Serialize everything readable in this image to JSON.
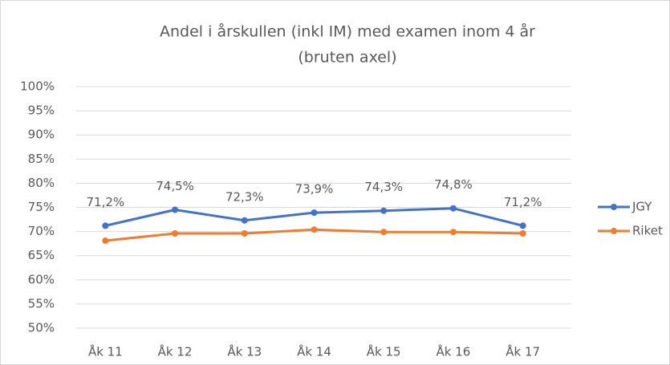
{
  "chart_data": {
    "type": "line",
    "title": [
      "Andel i årskullen (inkl IM) med examen inom 4 år",
      "(bruten axel)"
    ],
    "categories": [
      "Åk 11",
      "Åk 12",
      "Åk 13",
      "Åk 14",
      "Åk 15",
      "Åk 16",
      "Åk 17"
    ],
    "series": [
      {
        "name": "JGY",
        "color": "#4472c4",
        "values": [
          71.2,
          74.5,
          72.3,
          73.9,
          74.3,
          74.8,
          71.2
        ],
        "value_labels": [
          "71,2%",
          "74,5%",
          "72,3%",
          "73,9%",
          "74,3%",
          "74,8%",
          "71,2%"
        ]
      },
      {
        "name": "Riket",
        "color": "#ed7d31",
        "values": [
          68.1,
          69.6,
          69.6,
          70.4,
          69.9,
          69.9,
          69.6
        ]
      }
    ],
    "ylim": [
      50,
      100
    ],
    "yticks": [
      {
        "value": 50,
        "label": "50%"
      },
      {
        "value": 55,
        "label": "55%"
      },
      {
        "value": 60,
        "label": "60%"
      },
      {
        "value": 65,
        "label": "65%"
      },
      {
        "value": 70,
        "label": "70%"
      },
      {
        "value": 75,
        "label": "75%"
      },
      {
        "value": 80,
        "label": "80%"
      },
      {
        "value": 85,
        "label": "85%"
      },
      {
        "value": 90,
        "label": "90%"
      },
      {
        "value": 95,
        "label": "95%"
      },
      {
        "value": 100,
        "label": "100%"
      }
    ],
    "grid": true,
    "legend": "right"
  }
}
